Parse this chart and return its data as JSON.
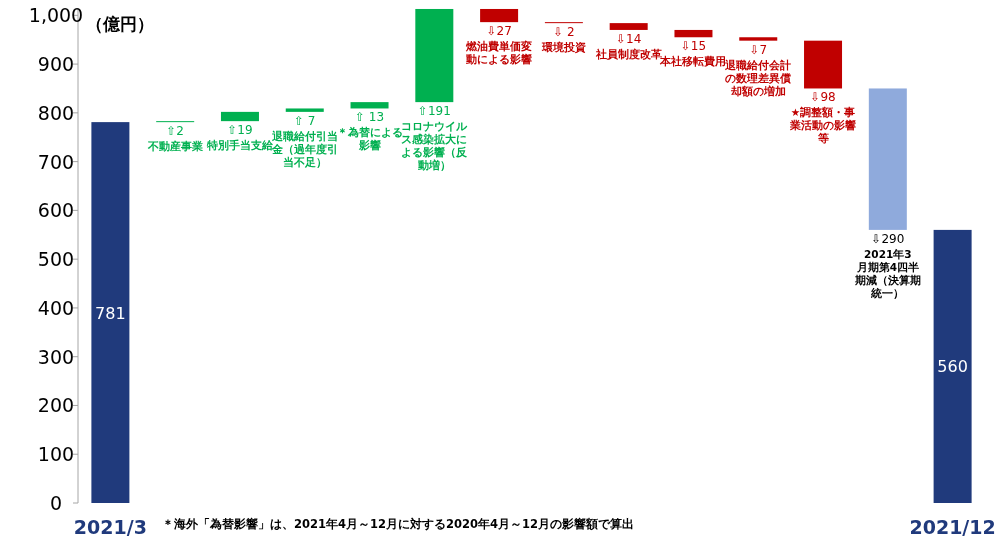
{
  "chart_data": {
    "type": "bar",
    "ylabel": "（億円）",
    "categories": [
      "2021/3",
      "不動産事業",
      "特別手当支給",
      "退職給付引当金（過年度引当不足）",
      "＊為替による影響",
      "コロナウイルス感染拡大による影響（反動増）",
      "燃油費単価変動による影響",
      "環境投資",
      "社員制度改革",
      "本社移転費用",
      "退職給付会計の数理差異償却額の増加",
      "★調整額・事業活動の影響等",
      "2021年3月期第4四半期減（決算期統一）",
      "2021/12"
    ],
    "base": [
      0,
      781,
      783,
      802,
      809,
      822,
      1013,
      986,
      984,
      970,
      955,
      948,
      850,
      0
    ],
    "values": [
      781,
      2,
      19,
      7,
      13,
      191,
      -27,
      -2,
      -14,
      -15,
      -7,
      -98,
      -290,
      560
    ],
    "value_labels": [
      "781",
      "⇧2",
      "⇧19",
      "⇧ 7",
      "⇧ 13",
      "⇧191",
      "⇩27",
      "⇩ 2",
      "⇩14",
      "⇩15",
      "⇩7",
      "⇩98",
      "⇩290",
      "560"
    ],
    "colors": [
      "#203a7c",
      "#00b050",
      "#00b050",
      "#00b050",
      "#00b050",
      "#00b050",
      "#c00000",
      "#c00000",
      "#c00000",
      "#c00000",
      "#c00000",
      "#c00000",
      "#8faadc",
      "#203a7c"
    ],
    "ylim": [
      0,
      1015
    ],
    "yticks": [
      0,
      100,
      200,
      300,
      400,
      500,
      600,
      700,
      800,
      900,
      {
        "value": 1000,
        "label": "1,000"
      }
    ],
    "grid": false,
    "annotations": [
      "＊海外「為替影響」は、2021年4月～12月に対する2020年4月～12月の影響額で算出"
    ]
  }
}
